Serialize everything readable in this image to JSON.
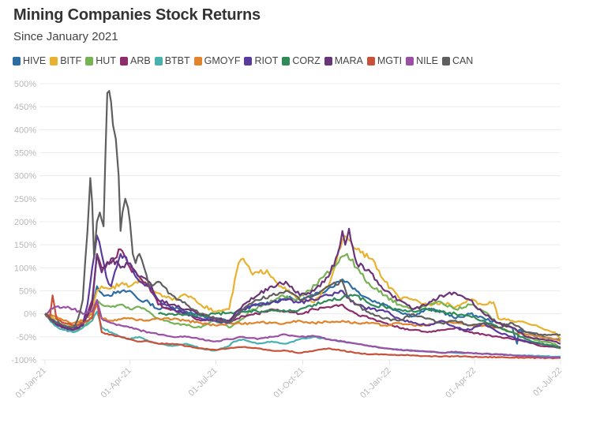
{
  "header": {
    "title": "Mining Companies Stock Returns",
    "subtitle": "Since January 2021"
  },
  "chart_data": {
    "type": "line",
    "title": "Mining Companies Stock Returns",
    "subtitle": "Since January 2021",
    "xlabel": "",
    "ylabel": "",
    "x_unit": "days since 01-Jan-21",
    "xlim": [
      0,
      546
    ],
    "ylim": [
      -100,
      500
    ],
    "y_ticks": [
      500,
      450,
      400,
      350,
      300,
      250,
      200,
      150,
      100,
      50,
      0,
      -50,
      -100
    ],
    "y_tick_labels": [
      "500%",
      "450%",
      "400%",
      "350%",
      "300%",
      "250%",
      "200%",
      "150%",
      "100%",
      "50%",
      "0%",
      "-50%",
      "-100%"
    ],
    "x_ticks": [
      0,
      90,
      181,
      273,
      365,
      455,
      546
    ],
    "x_tick_labels": [
      "01-Jan-21",
      "01-Apr-21",
      "01-Jul-21",
      "01-Oct-21",
      "01-Jan-22",
      "01-Apr-22",
      "01-Jul-22"
    ],
    "grid": true,
    "legend_position": "top-left",
    "series": [
      {
        "name": "HIVE",
        "color": "#2e6da4",
        "x": [
          0,
          10,
          20,
          30,
          40,
          50,
          55,
          60,
          65,
          75,
          90,
          100,
          110,
          120,
          135,
          150,
          165,
          180,
          195,
          210,
          225,
          240,
          255,
          270,
          285,
          300,
          315,
          320,
          330,
          345,
          360,
          375,
          390,
          405,
          420,
          435,
          450,
          465,
          480,
          495,
          500,
          502,
          510,
          525,
          540,
          546
        ],
        "y": [
          0,
          -15,
          -25,
          -30,
          -20,
          20,
          60,
          45,
          40,
          45,
          50,
          30,
          25,
          10,
          15,
          5,
          -5,
          -10,
          -15,
          10,
          20,
          25,
          35,
          30,
          40,
          55,
          75,
          70,
          50,
          30,
          20,
          5,
          -5,
          10,
          5,
          -10,
          0,
          -10,
          -20,
          -30,
          -65,
          -35,
          -40,
          -50,
          -55,
          -55
        ]
      },
      {
        "name": "BITF",
        "color": "#e8b230",
        "x": [
          0,
          10,
          20,
          30,
          40,
          50,
          55,
          60,
          70,
          80,
          90,
          100,
          110,
          120,
          135,
          150,
          165,
          180,
          195,
          205,
          210,
          220,
          235,
          250,
          260,
          270,
          285,
          300,
          315,
          320,
          330,
          345,
          360,
          375,
          390,
          405,
          420,
          435,
          450,
          465,
          475,
          480,
          495,
          510,
          525,
          540,
          546
        ],
        "y": [
          0,
          -10,
          -20,
          -25,
          -15,
          10,
          50,
          60,
          55,
          65,
          60,
          75,
          60,
          45,
          30,
          40,
          20,
          5,
          10,
          110,
          120,
          85,
          95,
          60,
          45,
          30,
          25,
          60,
          160,
          165,
          140,
          120,
          70,
          35,
          30,
          20,
          25,
          15,
          30,
          20,
          25,
          -10,
          -15,
          -20,
          -30,
          -40,
          -55
        ]
      },
      {
        "name": "HUT",
        "color": "#77b255",
        "x": [
          0,
          10,
          20,
          30,
          40,
          50,
          55,
          60,
          70,
          80,
          90,
          100,
          110,
          120,
          135,
          150,
          165,
          180,
          195,
          210,
          220,
          235,
          250,
          265,
          280,
          295,
          305,
          315,
          320,
          330,
          345,
          360,
          375,
          390,
          405,
          420,
          435,
          450,
          465,
          480,
          495,
          510,
          525,
          540,
          546
        ],
        "y": [
          0,
          -20,
          -30,
          -40,
          -30,
          -5,
          30,
          20,
          15,
          20,
          10,
          15,
          5,
          -10,
          -20,
          -25,
          -30,
          -15,
          -30,
          -10,
          10,
          20,
          40,
          30,
          50,
          80,
          100,
          125,
          130,
          100,
          60,
          40,
          20,
          10,
          20,
          25,
          10,
          20,
          5,
          -20,
          -30,
          -50,
          -60,
          -65,
          -75
        ]
      },
      {
        "name": "ARB",
        "color": "#8e2b6b",
        "x": [
          0,
          10,
          20,
          30,
          40,
          50,
          55,
          60,
          70,
          80,
          90,
          100,
          110,
          120,
          135,
          150,
          165,
          180,
          195,
          210,
          225,
          240,
          255,
          270,
          285,
          300,
          315,
          320,
          330,
          345,
          360,
          375,
          390,
          405,
          420,
          435,
          450,
          465,
          480,
          495,
          510,
          525,
          540,
          546
        ],
        "y": [
          0,
          -20,
          -30,
          -35,
          -25,
          30,
          130,
          100,
          110,
          140,
          100,
          80,
          60,
          20,
          10,
          0,
          -15,
          -10,
          -20,
          -5,
          0,
          10,
          5,
          0,
          10,
          15,
          20,
          10,
          0,
          -10,
          -20,
          -30,
          -35,
          -40,
          -35,
          -30,
          -40,
          -45,
          -50,
          -55,
          -60,
          -70,
          -72,
          -75
        ]
      },
      {
        "name": "BTBT",
        "color": "#49b0b0",
        "x": [
          0,
          10,
          20,
          30,
          40,
          50,
          55,
          60,
          70,
          80,
          90,
          100,
          110,
          120,
          135,
          150,
          165,
          180,
          195,
          200,
          210,
          225,
          240,
          255,
          270,
          285,
          300,
          315,
          330,
          345,
          360,
          375,
          390,
          405,
          420,
          435,
          450,
          465,
          480,
          495,
          510,
          525,
          540,
          546
        ],
        "y": [
          0,
          -25,
          -35,
          -40,
          -30,
          -15,
          5,
          -30,
          -40,
          -50,
          -55,
          -50,
          -60,
          -65,
          -70,
          -65,
          -75,
          -80,
          -70,
          -60,
          -55,
          -65,
          -60,
          -65,
          -55,
          -50,
          -55,
          -60,
          -65,
          -70,
          -75,
          -78,
          -80,
          -82,
          -84,
          -85,
          -85,
          -87,
          -88,
          -90,
          -91,
          -92,
          -93,
          -93
        ]
      },
      {
        "name": "GMOYF",
        "color": "#e0832a",
        "x": [
          0,
          10,
          20,
          30,
          40,
          50,
          55,
          60,
          70,
          80,
          90,
          100,
          110,
          120,
          135,
          150,
          165,
          180,
          195,
          210,
          225,
          240,
          255,
          270,
          285,
          300,
          315,
          330,
          345,
          360,
          375,
          390,
          405,
          420,
          435,
          450,
          465,
          480,
          495,
          510,
          525,
          540,
          546
        ],
        "y": [
          0,
          -5,
          -15,
          -20,
          -15,
          0,
          20,
          -10,
          -15,
          -12,
          -10,
          -12,
          -15,
          -10,
          -12,
          -15,
          -20,
          -25,
          -20,
          -22,
          -18,
          -20,
          -20,
          -15,
          -20,
          -18,
          -15,
          -20,
          -20,
          -25,
          -20,
          -25,
          -25,
          -15,
          -20,
          -25,
          -25,
          -30,
          -40,
          -45,
          -50,
          -55,
          -60
        ]
      },
      {
        "name": "RIOT",
        "color": "#5b3a9e",
        "x": [
          0,
          10,
          20,
          30,
          40,
          45,
          50,
          55,
          60,
          65,
          70,
          80,
          90,
          100,
          110,
          120,
          135,
          150,
          165,
          180,
          195,
          210,
          225,
          240,
          255,
          270,
          285,
          300,
          315,
          320,
          330,
          345,
          360,
          375,
          390,
          405,
          420,
          435,
          450,
          465,
          480,
          495,
          510,
          525,
          540,
          546
        ],
        "y": [
          0,
          -20,
          -30,
          -35,
          -25,
          20,
          100,
          170,
          130,
          80,
          60,
          130,
          110,
          70,
          60,
          30,
          10,
          0,
          -10,
          -15,
          -20,
          10,
          20,
          25,
          30,
          25,
          30,
          40,
          50,
          35,
          20,
          10,
          5,
          -10,
          -20,
          -25,
          -15,
          -30,
          -35,
          -20,
          -40,
          -50,
          -60,
          -65,
          -70,
          -72
        ]
      },
      {
        "name": "CORZ",
        "color": "#2e8b57",
        "x": [
          120,
          135,
          150,
          165,
          180,
          195,
          210,
          225,
          240,
          255,
          270,
          285,
          300,
          315,
          330,
          345,
          360,
          375,
          390,
          405,
          420,
          435,
          450,
          465,
          480,
          495,
          510,
          525,
          540,
          546
        ],
        "y": [
          0,
          0,
          -2,
          -3,
          0,
          2,
          5,
          5,
          8,
          5,
          10,
          20,
          30,
          35,
          40,
          20,
          15,
          10,
          5,
          10,
          5,
          0,
          -5,
          -15,
          -30,
          -40,
          -55,
          -65,
          -70,
          -75
        ]
      },
      {
        "name": "MARA",
        "color": "#6b3479",
        "x": [
          0,
          10,
          20,
          30,
          40,
          50,
          55,
          60,
          70,
          80,
          90,
          100,
          110,
          120,
          135,
          150,
          165,
          180,
          195,
          210,
          225,
          240,
          255,
          270,
          285,
          300,
          310,
          315,
          318,
          322,
          330,
          345,
          360,
          375,
          390,
          405,
          420,
          435,
          450,
          465,
          480,
          495,
          510,
          525,
          540,
          546
        ],
        "y": [
          0,
          -20,
          -30,
          -35,
          -25,
          20,
          130,
          90,
          120,
          100,
          110,
          80,
          70,
          30,
          20,
          10,
          0,
          -10,
          -15,
          20,
          40,
          60,
          70,
          40,
          50,
          80,
          130,
          180,
          150,
          185,
          110,
          90,
          50,
          30,
          10,
          20,
          40,
          45,
          30,
          0,
          -20,
          -30,
          -50,
          -55,
          -60,
          -65
        ]
      },
      {
        "name": "MGTI",
        "color": "#c9513a",
        "x": [
          0,
          5,
          8,
          12,
          20,
          30,
          40,
          50,
          55,
          60,
          70,
          80,
          90,
          100,
          110,
          120,
          135,
          150,
          165,
          180,
          195,
          210,
          225,
          240,
          255,
          270,
          285,
          300,
          315,
          330,
          345,
          360,
          375,
          390,
          405,
          420,
          435,
          450,
          465,
          480,
          495,
          510,
          525,
          540,
          546
        ],
        "y": [
          0,
          -10,
          40,
          -10,
          -20,
          -25,
          -20,
          -10,
          30,
          -40,
          -45,
          -50,
          -55,
          -60,
          -60,
          -65,
          -65,
          -70,
          -75,
          -78,
          -75,
          -72,
          -75,
          -80,
          -80,
          -85,
          -80,
          -75,
          -80,
          -85,
          -88,
          -88,
          -90,
          -90,
          -92,
          -93,
          -92,
          -93,
          -94,
          -94,
          -95,
          -95,
          -96,
          -96,
          -96
        ]
      },
      {
        "name": "NILE",
        "color": "#9b4fa5",
        "x": [
          0,
          10,
          20,
          30,
          40,
          50,
          55,
          60,
          70,
          80,
          90,
          100,
          110,
          120,
          135,
          150,
          165,
          180,
          195,
          210,
          225,
          240,
          255,
          270,
          285,
          300,
          315,
          330,
          345,
          360,
          375,
          390,
          405,
          420,
          435,
          450,
          465,
          480,
          495,
          510,
          525,
          540,
          546
        ],
        "y": [
          0,
          15,
          15,
          10,
          0,
          5,
          30,
          -10,
          -20,
          -25,
          -30,
          -35,
          -40,
          -45,
          -50,
          -50,
          -55,
          -60,
          -55,
          -50,
          -55,
          -50,
          -45,
          -50,
          -48,
          -55,
          -60,
          -65,
          -70,
          -75,
          -78,
          -80,
          -82,
          -85,
          -82,
          -85,
          -87,
          -88,
          -90,
          -92,
          -94,
          -95,
          -95
        ]
      },
      {
        "name": "CAN",
        "color": "#5f5f5f",
        "x": [
          0,
          10,
          20,
          30,
          35,
          40,
          45,
          48,
          50,
          52,
          55,
          58,
          62,
          66,
          70,
          72,
          75,
          78,
          80,
          82,
          85,
          88,
          90,
          93,
          96,
          100,
          105,
          110,
          120,
          135,
          150,
          165,
          180,
          195,
          210,
          225,
          240,
          255,
          270,
          285,
          300,
          315,
          320,
          330,
          345,
          360,
          375,
          390,
          405,
          420,
          435,
          450,
          465,
          480,
          495,
          510,
          525,
          540,
          546
        ],
        "y": [
          0,
          -20,
          -25,
          -30,
          -10,
          30,
          180,
          295,
          240,
          120,
          200,
          220,
          190,
          480,
          460,
          410,
          380,
          300,
          180,
          220,
          250,
          230,
          200,
          130,
          110,
          130,
          100,
          60,
          70,
          40,
          20,
          0,
          -10,
          -20,
          10,
          30,
          40,
          50,
          30,
          40,
          60,
          70,
          40,
          20,
          0,
          -10,
          -15,
          0,
          -10,
          -20,
          -15,
          -25,
          -20,
          -30,
          -20,
          -40,
          -45,
          -45,
          -45
        ]
      }
    ]
  }
}
